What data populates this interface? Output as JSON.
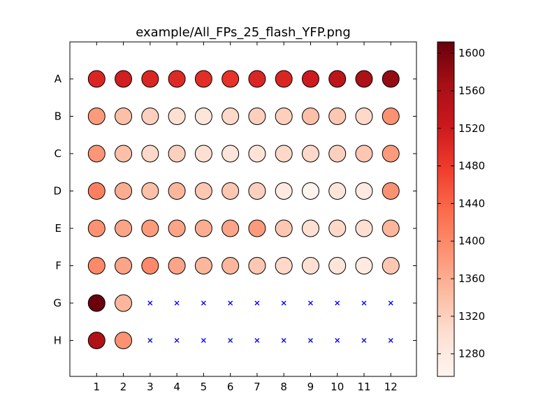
{
  "chart_data": {
    "type": "scatter",
    "title": "example/All_FPs_25_flash_YFP.png",
    "x_tick_labels": [
      "1",
      "2",
      "3",
      "4",
      "5",
      "6",
      "7",
      "8",
      "9",
      "10",
      "11",
      "12"
    ],
    "y_tick_labels": [
      "A",
      "B",
      "C",
      "D",
      "E",
      "F",
      "G",
      "H"
    ],
    "colorbar": {
      "min": 1256,
      "max": 1612,
      "tick_values": [
        1280,
        1320,
        1360,
        1400,
        1440,
        1480,
        1520,
        1560,
        1600
      ],
      "tick_labels": [
        "1280",
        "1320",
        "1360",
        "1400",
        "1440",
        "1480",
        "1520",
        "1560",
        "1600"
      ],
      "colormap": "Reds"
    },
    "grid": false,
    "missing_marker": "x",
    "missing_color": "#0000ff",
    "rows": [
      {
        "label": "A",
        "values": [
          1505,
          1515,
          1505,
          1500,
          1495,
          1490,
          1505,
          1505,
          1520,
          1540,
          1560,
          1580
        ]
      },
      {
        "label": "B",
        "values": [
          1380,
          1340,
          1320,
          1300,
          1290,
          1310,
          1320,
          1320,
          1340,
          1330,
          1310,
          1390
        ]
      },
      {
        "label": "C",
        "values": [
          1385,
          1340,
          1310,
          1320,
          1300,
          1290,
          1295,
          1310,
          1310,
          1320,
          1330,
          1380
        ]
      },
      {
        "label": "D",
        "values": [
          1410,
          1360,
          1340,
          1350,
          1330,
          1330,
          1320,
          1280,
          1260,
          1290,
          1280,
          1390
        ]
      },
      {
        "label": "E",
        "values": [
          1390,
          1370,
          1380,
          1370,
          1360,
          1370,
          1380,
          1330,
          1300,
          1310,
          1300,
          1350
        ]
      },
      {
        "label": "F",
        "values": [
          1400,
          1370,
          1400,
          1370,
          1350,
          1350,
          1330,
          1310,
          1300,
          1290,
          1280,
          1330
        ]
      },
      {
        "label": "G",
        "values": [
          1610,
          1350,
          null,
          null,
          null,
          null,
          null,
          null,
          null,
          null,
          null,
          null
        ]
      },
      {
        "label": "H",
        "values": [
          1555,
          1390,
          null,
          null,
          null,
          null,
          null,
          null,
          null,
          null,
          null,
          null
        ]
      }
    ]
  }
}
